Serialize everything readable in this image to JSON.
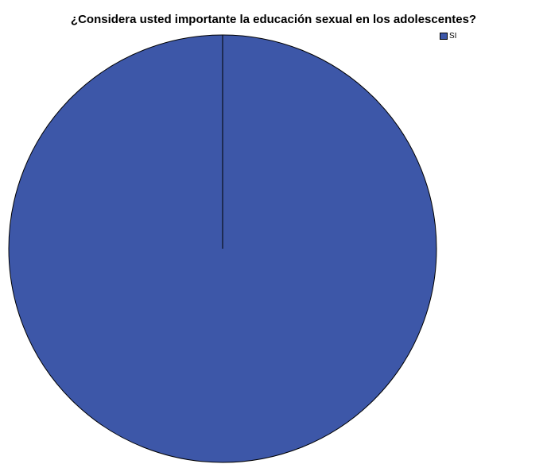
{
  "chart_data": {
    "type": "pie",
    "title": "¿Considera usted importante la educación sexual en los adolescentes?",
    "categories": [
      "SI"
    ],
    "values": [
      100
    ],
    "colors": [
      "#3d57a8"
    ],
    "legend_position": "top-right"
  }
}
